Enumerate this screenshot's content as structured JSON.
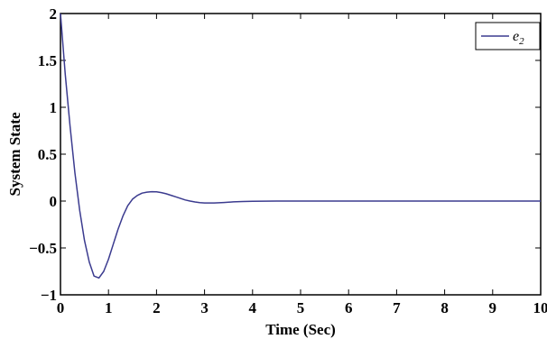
{
  "chart_data": {
    "type": "line",
    "title": "",
    "xlabel": "Time (Sec)",
    "ylabel": "System State",
    "xlim": [
      0,
      10
    ],
    "ylim": [
      -1,
      2
    ],
    "xticks": [
      0,
      1,
      2,
      3,
      4,
      5,
      6,
      7,
      8,
      9,
      10
    ],
    "xtick_labels": [
      "0",
      "1",
      "2",
      "3",
      "4",
      "5",
      "6",
      "7",
      "8",
      "9",
      "10"
    ],
    "yticks": [
      -1,
      -0.5,
      0,
      0.5,
      1,
      1.5,
      2
    ],
    "ytick_labels": [
      "−1",
      "−0.5",
      "0",
      "0.5",
      "1",
      "1.5",
      "2"
    ],
    "grid": false,
    "legend_position": "top-right",
    "legend": {
      "symbol": "e",
      "subscript": "2"
    },
    "series": [
      {
        "name": "e2",
        "color": "#3b3b8f",
        "x": [
          0,
          0.1,
          0.2,
          0.3,
          0.4,
          0.5,
          0.6,
          0.7,
          0.8,
          0.9,
          1.0,
          1.1,
          1.2,
          1.3,
          1.4,
          1.5,
          1.6,
          1.7,
          1.8,
          1.9,
          2.0,
          2.1,
          2.2,
          2.3,
          2.4,
          2.5,
          2.6,
          2.7,
          2.8,
          2.9,
          3.0,
          3.2,
          3.4,
          3.6,
          3.8,
          4.0,
          4.5,
          5.0,
          6.0,
          7.0,
          8.0,
          9.0,
          10.0
        ],
        "y": [
          2.0,
          1.35,
          0.8,
          0.3,
          -0.1,
          -0.42,
          -0.65,
          -0.8,
          -0.82,
          -0.75,
          -0.62,
          -0.46,
          -0.3,
          -0.16,
          -0.05,
          0.02,
          0.06,
          0.085,
          0.095,
          0.1,
          0.098,
          0.09,
          0.078,
          0.062,
          0.045,
          0.028,
          0.012,
          0.0,
          -0.01,
          -0.017,
          -0.02,
          -0.02,
          -0.015,
          -0.009,
          -0.005,
          -0.002,
          0.0,
          0.0,
          0.0,
          0.0,
          0.0,
          0.0,
          0.0
        ]
      }
    ]
  }
}
